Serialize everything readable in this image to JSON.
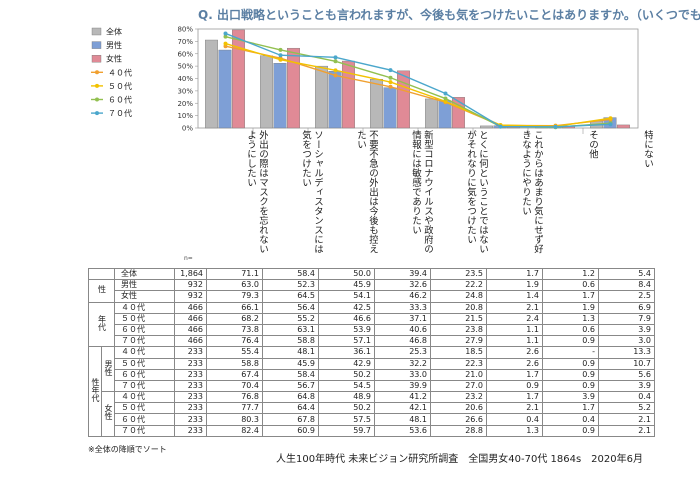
{
  "title": "Q. 出口戦略ということも言われますが、今後も気をつけたいことはありますか。（いくつでも）",
  "chart_data": {
    "type": "bar",
    "ylim": [
      0,
      80
    ],
    "yticks": [
      "0%",
      "10%",
      "20%",
      "30%",
      "40%",
      "50%",
      "60%",
      "70%",
      "80%"
    ],
    "categories": [
      "外出の際はマスクを忘れないようにしたい",
      "ソーシャルディスタンスには気をつけたい",
      "不要不急の外出は今後も控えたい",
      "新型コロナウイルスや政府の情報には敏感でありたい",
      "とくに何ということではないがそれなりに気をつけたい",
      "これからはあまり気にせず好きなようにやりたい",
      "その他",
      "特にない"
    ],
    "bar_series": [
      {
        "name": "全体",
        "color": "#b8b8b8",
        "values": [
          71.1,
          58.4,
          50.0,
          39.4,
          23.5,
          1.7,
          1.2,
          5.4
        ]
      },
      {
        "name": "男性",
        "color": "#7e9fd6",
        "values": [
          63.0,
          52.3,
          45.9,
          32.6,
          22.2,
          1.9,
          0.6,
          8.4
        ]
      },
      {
        "name": "女性",
        "color": "#e08a96",
        "values": [
          79.3,
          64.5,
          54.1,
          46.2,
          24.8,
          1.4,
          1.7,
          2.5
        ]
      }
    ],
    "line_series": [
      {
        "name": "４０代",
        "color": "#f0a030",
        "values": [
          66.1,
          56.4,
          42.5,
          33.3,
          20.8,
          2.1,
          1.9,
          6.9
        ]
      },
      {
        "name": "５０代",
        "color": "#f2c200",
        "values": [
          68.2,
          55.2,
          46.6,
          37.1,
          21.5,
          2.4,
          1.3,
          7.9
        ]
      },
      {
        "name": "６０代",
        "color": "#92c050",
        "values": [
          73.8,
          63.1,
          53.9,
          40.6,
          23.8,
          1.1,
          0.6,
          3.9
        ]
      },
      {
        "name": "７０代",
        "color": "#4ba7cc",
        "values": [
          76.4,
          58.8,
          57.1,
          46.8,
          27.9,
          1.1,
          0.9,
          3.0
        ]
      }
    ]
  },
  "table": {
    "n_label": "n=",
    "rows": [
      {
        "group": "",
        "sub": "",
        "label": "全体",
        "n": "1,864",
        "values": [
          "71.1",
          "58.4",
          "50.0",
          "39.4",
          "23.5",
          "1.7",
          "1.2",
          "5.4"
        ]
      },
      {
        "group": "性",
        "sub": "",
        "label": "男性",
        "n": "932",
        "values": [
          "63.0",
          "52.3",
          "45.9",
          "32.6",
          "22.2",
          "1.9",
          "0.6",
          "8.4"
        ]
      },
      {
        "group": "",
        "sub": "",
        "label": "女性",
        "n": "932",
        "values": [
          "79.3",
          "64.5",
          "54.1",
          "46.2",
          "24.8",
          "1.4",
          "1.7",
          "2.5"
        ]
      },
      {
        "group": "年代",
        "sub": "",
        "label": "４０代",
        "n": "466",
        "values": [
          "66.1",
          "56.4",
          "42.5",
          "33.3",
          "20.8",
          "2.1",
          "1.9",
          "6.9"
        ]
      },
      {
        "group": "",
        "sub": "",
        "label": "５０代",
        "n": "466",
        "values": [
          "68.2",
          "55.2",
          "46.6",
          "37.1",
          "21.5",
          "2.4",
          "1.3",
          "7.9"
        ]
      },
      {
        "group": "",
        "sub": "",
        "label": "６０代",
        "n": "466",
        "values": [
          "73.8",
          "63.1",
          "53.9",
          "40.6",
          "23.8",
          "1.1",
          "0.6",
          "3.9"
        ]
      },
      {
        "group": "",
        "sub": "",
        "label": "７０代",
        "n": "466",
        "values": [
          "76.4",
          "58.8",
          "57.1",
          "46.8",
          "27.9",
          "1.1",
          "0.9",
          "3.0"
        ]
      },
      {
        "group": "性年代",
        "sub": "男性",
        "label": "４０代",
        "n": "233",
        "values": [
          "55.4",
          "48.1",
          "36.1",
          "25.3",
          "18.5",
          "2.6",
          "-",
          "13.3"
        ]
      },
      {
        "group": "",
        "sub": "",
        "label": "５０代",
        "n": "233",
        "values": [
          "58.8",
          "45.9",
          "42.9",
          "32.2",
          "22.3",
          "2.6",
          "0.9",
          "10.7"
        ]
      },
      {
        "group": "",
        "sub": "",
        "label": "６０代",
        "n": "233",
        "values": [
          "67.4",
          "58.4",
          "50.2",
          "33.0",
          "21.0",
          "1.7",
          "0.9",
          "5.6"
        ]
      },
      {
        "group": "",
        "sub": "",
        "label": "７０代",
        "n": "233",
        "values": [
          "70.4",
          "56.7",
          "54.5",
          "39.9",
          "27.0",
          "0.9",
          "0.9",
          "3.9"
        ]
      },
      {
        "group": "",
        "sub": "女性",
        "label": "４０代",
        "n": "233",
        "values": [
          "76.8",
          "64.8",
          "48.9",
          "41.2",
          "23.2",
          "1.7",
          "3.9",
          "0.4"
        ]
      },
      {
        "group": "",
        "sub": "",
        "label": "５０代",
        "n": "233",
        "values": [
          "77.7",
          "64.4",
          "50.2",
          "42.1",
          "20.6",
          "2.1",
          "1.7",
          "5.2"
        ]
      },
      {
        "group": "",
        "sub": "",
        "label": "６０代",
        "n": "233",
        "values": [
          "80.3",
          "67.8",
          "57.5",
          "48.1",
          "26.6",
          "0.4",
          "0.4",
          "2.1"
        ]
      },
      {
        "group": "",
        "sub": "",
        "label": "７０代",
        "n": "233",
        "values": [
          "82.4",
          "60.9",
          "59.7",
          "53.6",
          "28.8",
          "1.3",
          "0.9",
          "2.1"
        ]
      }
    ]
  },
  "note": "※全体の降順でソート",
  "source": "人生100年時代 未来ビジョン研究所調査　全国男女40-70代 1864s　2020年6月"
}
